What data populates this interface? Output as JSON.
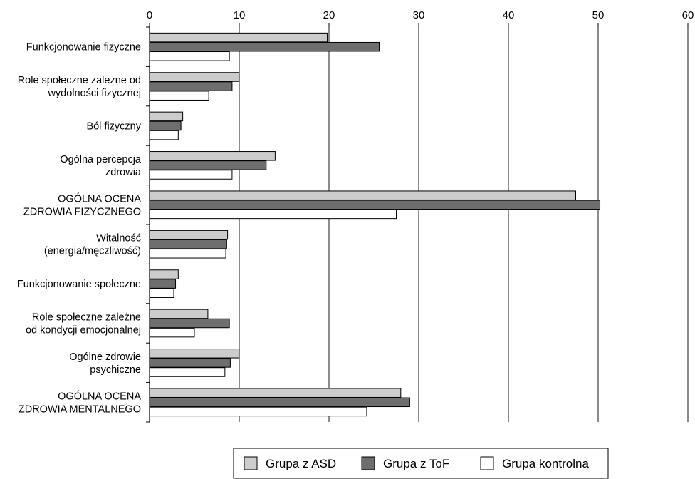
{
  "chart_data": {
    "type": "bar",
    "orientation": "horizontal",
    "x_axis_position": "top",
    "xlim": [
      0,
      60
    ],
    "x_ticks": [
      "0",
      "10",
      "20",
      "30",
      "40",
      "50",
      "60"
    ],
    "grid": true,
    "legend_position": "bottom",
    "categories": [
      [
        "Funkcjonowanie fizyczne"
      ],
      [
        "Role społeczne zależne od",
        "wydolności fizycznej"
      ],
      [
        "Ból fizyczny"
      ],
      [
        "Ogólna percepcja",
        "zdrowia"
      ],
      [
        "OGÓLNA OCENA",
        "ZDROWIA FIZYCZNEGO"
      ],
      [
        "Witalność",
        "(energia/męczliwość)"
      ],
      [
        "Funkcjonowanie społeczne"
      ],
      [
        "Role społeczne zależne",
        "od kondycji emocjonalnej"
      ],
      [
        "Ogólne zdrowie",
        "psychiczne"
      ],
      [
        "OGÓLNA OCENA",
        "ZDROWIA MENTALNEGO"
      ]
    ],
    "series": [
      {
        "name": "Grupa z ASD",
        "color": "#cccccc",
        "values": [
          19.8,
          10.0,
          3.7,
          14.0,
          47.5,
          8.7,
          3.2,
          6.5,
          10.0,
          28.0
        ]
      },
      {
        "name": "Grupa z ToF",
        "color": "#6e6e6e",
        "values": [
          25.6,
          9.2,
          3.5,
          13.0,
          50.2,
          8.6,
          2.9,
          8.9,
          9.0,
          29.0
        ]
      },
      {
        "name": "Grupa kontrolna",
        "color": "#ffffff",
        "values": [
          8.9,
          6.6,
          3.2,
          9.2,
          27.5,
          8.5,
          2.7,
          5.0,
          8.4,
          24.2
        ]
      }
    ]
  }
}
